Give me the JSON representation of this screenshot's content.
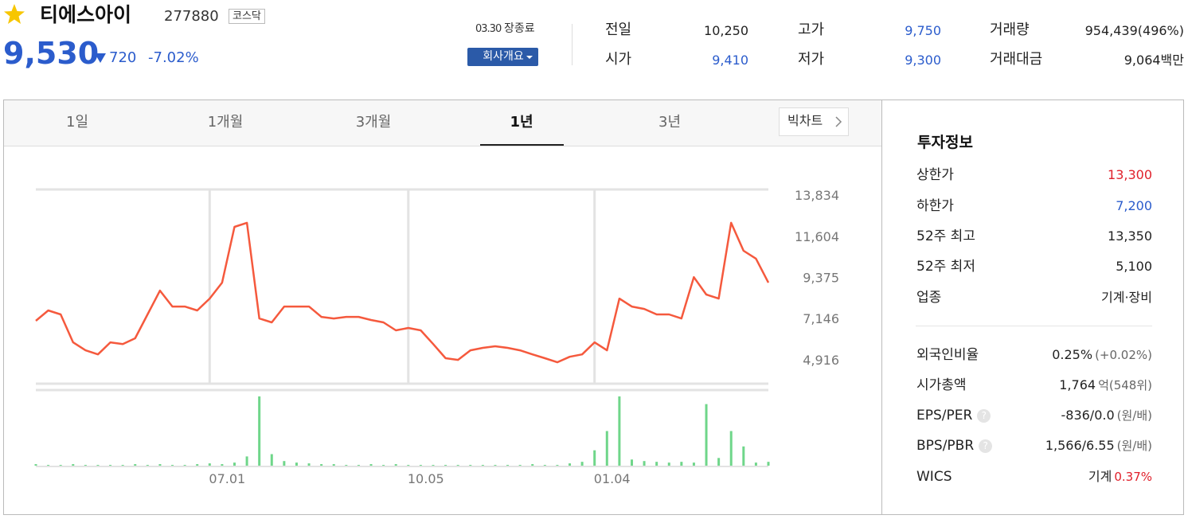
{
  "header": {
    "name": "티에스아이",
    "code": "277880",
    "market": "코스닥",
    "price": "9,530",
    "change": "720",
    "change_pct": "-7.02%",
    "date": "03.30",
    "status": "장종료",
    "company_button": "회사개요"
  },
  "summary": [
    {
      "label": "전일",
      "value": "10,250",
      "color": "#222"
    },
    {
      "label": "시가",
      "value": "9,410",
      "color": "#2b5ccc"
    },
    {
      "label": "고가",
      "value": "9,750",
      "color": "#2b5ccc"
    },
    {
      "label": "저가",
      "value": "9,300",
      "color": "#2b5ccc"
    },
    {
      "label": "거래량",
      "value": "954,439(496%)",
      "color": "#222"
    },
    {
      "label": "거래대금",
      "value": "9,064백만",
      "color": "#222"
    }
  ],
  "tabs": {
    "items": [
      "1일",
      "1개월",
      "3개월",
      "1년",
      "3년"
    ],
    "selected": 3,
    "big_chart": "빅차트"
  },
  "invest": {
    "title": "투자정보",
    "rows": [
      {
        "label": "상한가",
        "value": "13,300",
        "color": "#e0202b"
      },
      {
        "label": "하한가",
        "value": "7,200",
        "color": "#2b5ccc"
      },
      {
        "label": "52주 최고",
        "value": "13,350"
      },
      {
        "label": "52주 최저",
        "value": "5,100"
      },
      {
        "label": "업종",
        "value": "기계·장비"
      },
      {
        "label": "외국인비율",
        "value": "0.25%",
        "extra": "(+0.02%)"
      },
      {
        "label": "시가총액",
        "value": "1,764",
        "extra": "억(548위)"
      },
      {
        "label": "EPS/PER",
        "value": "-836/0.0",
        "extra": "(원/배)",
        "help": true
      },
      {
        "label": "BPS/PBR",
        "value": "1,566/6.55",
        "extra": "(원/배)",
        "help": true
      },
      {
        "label": "WICS",
        "value": "기계",
        "extra": "0.37%",
        "extra_color": "#e0202b"
      }
    ]
  },
  "chart_data": [
    {
      "type": "line",
      "color": "#f5593d",
      "categories": [
        null,
        null,
        null,
        null,
        null,
        null,
        null,
        null,
        null,
        null,
        null,
        null,
        null,
        null,
        "07.01",
        null,
        null,
        null,
        null,
        null,
        null,
        null,
        null,
        null,
        null,
        null,
        null,
        null,
        null,
        null,
        "10.05",
        null,
        null,
        null,
        null,
        null,
        null,
        null,
        null,
        null,
        null,
        null,
        null,
        null,
        null,
        "01.04",
        null,
        null,
        null,
        null,
        null,
        null,
        null,
        null,
        null,
        null,
        null,
        null,
        null,
        null
      ],
      "values": [
        7025,
        7585,
        7370,
        5860,
        5430,
        5210,
        5860,
        5770,
        6080,
        7370,
        8660,
        7800,
        7800,
        7585,
        8230,
        9090,
        12110,
        12330,
        7150,
        6940,
        7800,
        7800,
        7800,
        7240,
        7150,
        7240,
        7240,
        7070,
        6940,
        6510,
        6640,
        6510,
        5770,
        5000,
        4910,
        5430,
        5560,
        5650,
        5560,
        5430,
        5210,
        5000,
        4780,
        5080,
        5210,
        5860,
        5430,
        8230,
        7800,
        7670,
        7370,
        7370,
        7150,
        9390,
        8450,
        8230,
        12330,
        10820,
        10390,
        9090
      ],
      "ylim": [
        3623,
        14136
      ],
      "yticks": [
        {
          "value": 4916,
          "label": "4,916"
        },
        {
          "value": 7146,
          "label": "7,146"
        },
        {
          "value": 9375,
          "label": "9,375"
        },
        {
          "value": 11604,
          "label": "11,604"
        },
        {
          "value": 13834,
          "label": "13,834"
        }
      ]
    },
    {
      "type": "bar",
      "color": "#6fd68a",
      "values": [
        2,
        1,
        1,
        2,
        1,
        1,
        1,
        1,
        2,
        1,
        2,
        1,
        1,
        2,
        3,
        2,
        4,
        12,
        90,
        15,
        6,
        4,
        3,
        2,
        2,
        1,
        1,
        2,
        1,
        2,
        1,
        1,
        1,
        1,
        1,
        1,
        1,
        1,
        1,
        1,
        2,
        1,
        1,
        3,
        5,
        20,
        45,
        90,
        8,
        6,
        5,
        4,
        5,
        4,
        80,
        10,
        45,
        25,
        4,
        5
      ]
    }
  ]
}
